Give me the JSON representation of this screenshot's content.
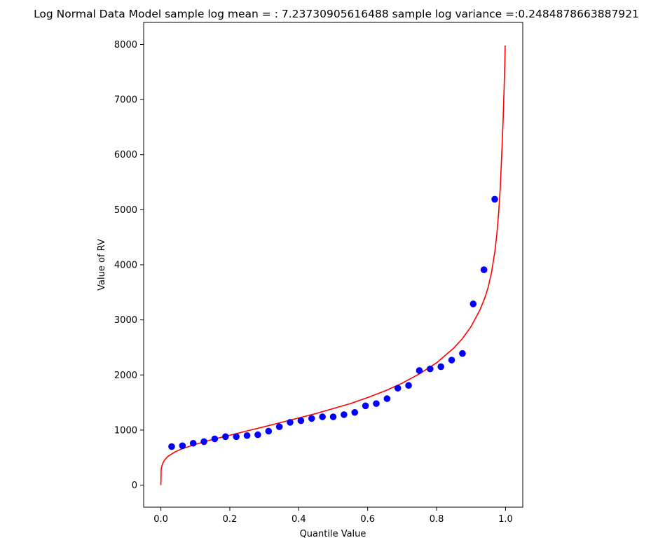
{
  "chart_data": {
    "type": "scatter",
    "title": "Log Normal Data Model sample log mean = : 7.23730905616488 sample log variance  =:0.2484878663887921",
    "xlabel": "Quantile Value",
    "ylabel": "Value of RV",
    "xlim": [
      -0.05,
      1.05
    ],
    "ylim": [
      -400,
      8400
    ],
    "xticks": [
      0.0,
      0.2,
      0.4,
      0.6,
      0.8,
      1.0
    ],
    "xtick_labels": [
      "0.0",
      "0.2",
      "0.4",
      "0.6",
      "0.8",
      "1.0"
    ],
    "yticks": [
      0,
      1000,
      2000,
      3000,
      4000,
      5000,
      6000,
      7000,
      8000
    ],
    "ytick_labels": [
      "0",
      "1000",
      "2000",
      "3000",
      "4000",
      "5000",
      "6000",
      "7000",
      "8000"
    ],
    "grid": false,
    "legend": "none",
    "series": [
      {
        "type": "scatter",
        "color": "#0000ff",
        "x": [
          0.03125,
          0.0625,
          0.09375,
          0.125,
          0.15625,
          0.1875,
          0.21875,
          0.25,
          0.28125,
          0.3125,
          0.34375,
          0.375,
          0.40625,
          0.4375,
          0.46875,
          0.5,
          0.53125,
          0.5625,
          0.59375,
          0.625,
          0.65625,
          0.6875,
          0.71875,
          0.75,
          0.78125,
          0.8125,
          0.84375,
          0.875,
          0.90625,
          0.9375,
          0.96875
        ],
        "y": [
          700,
          715,
          760,
          790,
          840,
          880,
          880,
          900,
          915,
          980,
          1060,
          1140,
          1170,
          1210,
          1240,
          1240,
          1280,
          1320,
          1440,
          1480,
          1570,
          1760,
          1810,
          2080,
          2110,
          2150,
          2270,
          2390,
          3290,
          3910,
          5190
        ]
      },
      {
        "type": "line",
        "color": "#ff0000",
        "x": [
          0.0,
          0.001,
          0.005,
          0.01,
          0.02,
          0.04,
          0.06,
          0.1,
          0.15,
          0.2,
          0.25,
          0.3,
          0.35,
          0.4,
          0.45,
          0.5,
          0.55,
          0.6,
          0.65,
          0.7,
          0.75,
          0.8,
          0.85,
          0.875,
          0.9,
          0.925,
          0.94,
          0.95,
          0.96,
          0.97,
          0.975,
          0.98,
          0.985,
          0.99,
          0.993,
          0.996,
          0.998,
          0.999
        ],
        "y": [
          0,
          300,
          390,
          450,
          520,
          600,
          655,
          740,
          830,
          905,
          985,
          1060,
          1140,
          1220,
          1300,
          1390,
          1480,
          1590,
          1710,
          1850,
          2020,
          2220,
          2490,
          2660,
          2880,
          3170,
          3400,
          3600,
          3880,
          4280,
          4570,
          4940,
          5420,
          6150,
          6620,
          7220,
          7650,
          7980
        ]
      }
    ]
  }
}
